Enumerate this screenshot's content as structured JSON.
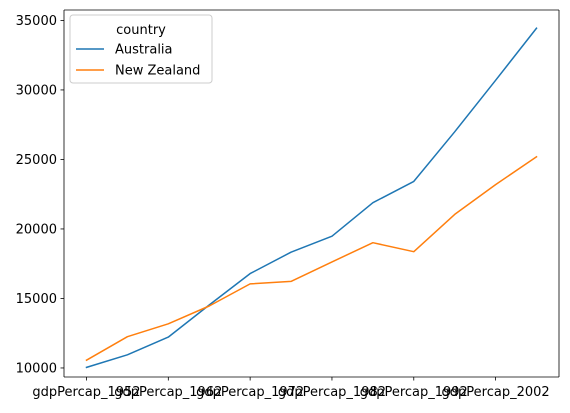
{
  "chart_data": {
    "type": "line",
    "title": "",
    "xlabel": "",
    "ylabel": "",
    "x_ticks": [
      {
        "value": 1952,
        "label": "gdpPercap_1952"
      },
      {
        "value": 1962,
        "label": "gdpPercap_1962"
      },
      {
        "value": 1972,
        "label": "gdpPercap_1972"
      },
      {
        "value": 1982,
        "label": "gdpPercap_1982"
      },
      {
        "value": 1992,
        "label": "gdpPercap_1992"
      },
      {
        "value": 2002,
        "label": "gdpPercap_2002"
      }
    ],
    "x": [
      1952,
      1957,
      1962,
      1967,
      1972,
      1977,
      1982,
      1987,
      1992,
      1997,
      2002,
      2007
    ],
    "xlim": [
      1949.25,
      2009.75
    ],
    "ylim": [
      9350,
      35750
    ],
    "y_ticks": [
      10000,
      15000,
      20000,
      25000,
      30000,
      35000
    ],
    "grid": false,
    "legend": {
      "title": "country",
      "position": "top-left"
    },
    "series": [
      {
        "name": "Australia",
        "color": "#1f77b4",
        "values": [
          10040,
          10950,
          12220,
          14530,
          16790,
          18330,
          19480,
          21890,
          23420,
          26990,
          30690,
          34440
        ]
      },
      {
        "name": "New Zealand",
        "color": "#ff7f0e",
        "values": [
          10560,
          12250,
          13180,
          14460,
          16050,
          16230,
          17630,
          19010,
          18360,
          21050,
          23190,
          25190
        ]
      }
    ]
  }
}
